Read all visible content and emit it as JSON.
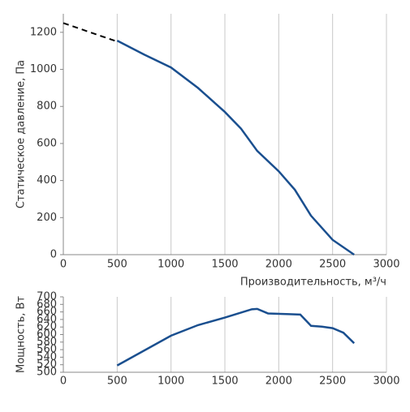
{
  "chart_data": [
    {
      "type": "line",
      "ylabel": "Статическое давление, Па",
      "xlabel": "Производительность, м³/ч",
      "xlim": [
        0,
        3000
      ],
      "xticks": [
        0,
        500,
        1000,
        1500,
        2000,
        2500,
        3000
      ],
      "ylim": [
        0,
        1300
      ],
      "yticks": [
        0,
        200,
        400,
        600,
        800,
        1000,
        1200
      ],
      "grid": true,
      "series": [
        {
          "color": "#000000",
          "dashed": true,
          "x": [
            0,
            500
          ],
          "values": [
            1250,
            1150
          ]
        },
        {
          "color": "#1a4f8f",
          "dashed": false,
          "x": [
            500,
            750,
            1000,
            1250,
            1500,
            1650,
            1800,
            2000,
            2150,
            2300,
            2500,
            2700
          ],
          "values": [
            1155,
            1080,
            1010,
            900,
            770,
            680,
            560,
            450,
            350,
            210,
            80,
            0
          ]
        }
      ]
    },
    {
      "type": "line",
      "ylabel": "Мощность, Вт",
      "xlim": [
        0,
        3000
      ],
      "xticks": [
        0,
        500,
        1000,
        1500,
        2000,
        2500,
        3000
      ],
      "ylim": [
        500,
        700
      ],
      "yticks": [
        500,
        520,
        540,
        560,
        580,
        600,
        620,
        640,
        660,
        680,
        700
      ],
      "grid": true,
      "series": [
        {
          "color": "#1a4f8f",
          "dashed": false,
          "x": [
            500,
            1000,
            1250,
            1500,
            1750,
            1800,
            1900,
            2100,
            2200,
            2300,
            2400,
            2500,
            2600,
            2700
          ],
          "values": [
            518,
            597,
            625,
            645,
            667,
            668,
            656,
            654,
            653,
            623,
            621,
            617,
            605,
            577
          ]
        }
      ]
    }
  ]
}
